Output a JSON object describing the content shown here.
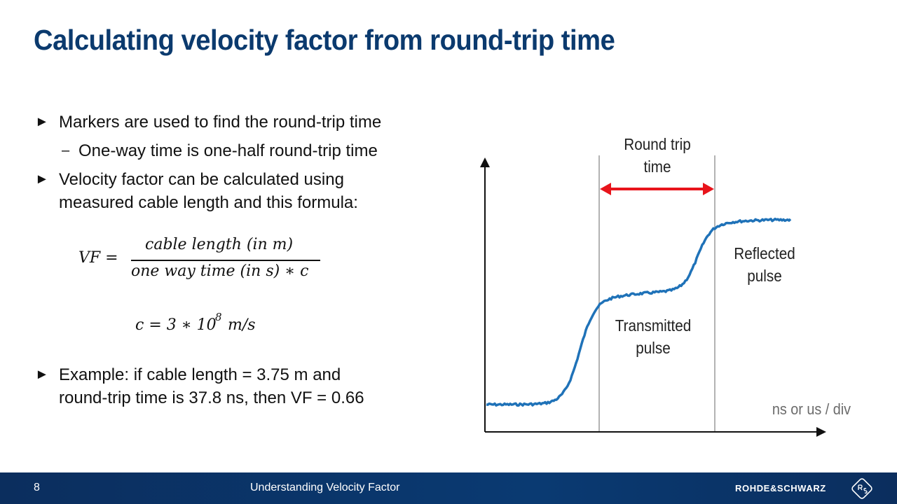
{
  "slide": {
    "title": "Calculating velocity factor from round-trip time",
    "bullets": [
      {
        "marker": "►",
        "text": "Markers are used to find the round-trip time"
      },
      {
        "marker": "–",
        "text": "One-way time is one-half round-trip time"
      },
      {
        "marker": "►",
        "text": "Velocity factor can be calculated using"
      },
      {
        "marker": "",
        "text": "measured cable length and this formula:"
      },
      {
        "marker": "►",
        "text": "Example: if cable length = 3.75 m and"
      },
      {
        "marker": "",
        "text": "round-trip time is 37.8 ns, then VF = 0.66"
      }
    ],
    "formula": {
      "lhs": "VF =",
      "numerator": "cable length (in m)",
      "denominator": "one way time (in s) ∗ c",
      "constant_lhs": "c = 3 ∗ 10",
      "constant_exp": "8",
      "constant_unit": "m/s"
    }
  },
  "diagram": {
    "label_round_trip_1": "Round trip",
    "label_round_trip_2": "time",
    "label_reflected_1": "Reflected",
    "label_reflected_2": "pulse",
    "label_transmitted_1": "Transmitted",
    "label_transmitted_2": "pulse",
    "axis_label": "ns or us / div",
    "colors": {
      "trace": "#1f72b8",
      "arrow": "#e8141b",
      "marker": "#9a9a9a",
      "axis": "#111111"
    }
  },
  "footer": {
    "page_number": "8",
    "title": "Understanding Velocity Factor",
    "brand": "ROHDE&SCHWARZ",
    "colors": {
      "background": "#0b2e5e"
    }
  }
}
